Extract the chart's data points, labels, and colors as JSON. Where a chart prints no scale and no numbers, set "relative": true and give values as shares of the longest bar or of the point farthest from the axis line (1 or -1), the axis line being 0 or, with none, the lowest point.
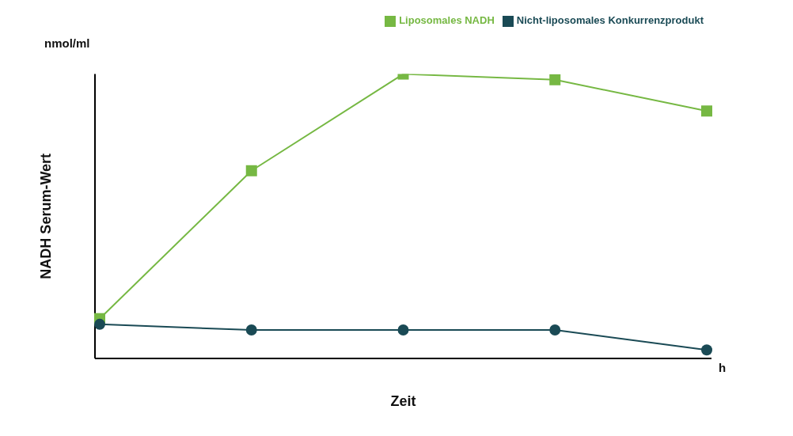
{
  "chart_data": {
    "type": "line",
    "relative": true,
    "ylabel": "NADH Serum-Wert",
    "xlabel": "Zeit",
    "annotations": [
      "nmol/ml",
      "h"
    ],
    "categories": [
      null,
      null,
      null,
      null,
      null
    ],
    "legend": "top right",
    "series": [
      {
        "name": "Liposomales NADH",
        "color": "#76b843",
        "marker": "square",
        "values": [
          0.14,
          0.66,
          1,
          0.98,
          0.87
        ]
      },
      {
        "name": "Nicht-liposomales Konkurrenzprodukt",
        "color": "#1a4a55",
        "marker": "circle",
        "values": [
          0.12,
          0.1,
          0.1,
          0.1,
          0.03
        ]
      }
    ]
  }
}
